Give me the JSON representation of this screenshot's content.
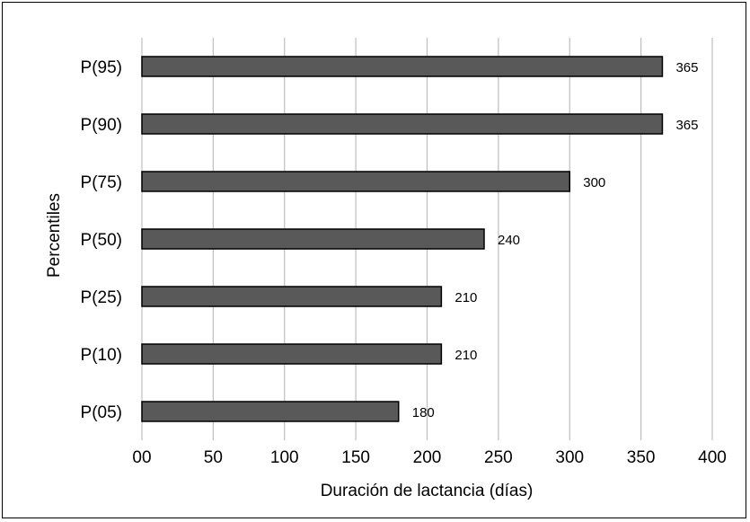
{
  "chart_data": {
    "type": "bar",
    "orientation": "horizontal",
    "title": "",
    "xlabel": "Duración de lactancia (días)",
    "ylabel": "Percentiles",
    "categories": [
      "P(95)",
      "P(90)",
      "P(75)",
      "P(50)",
      "P(25)",
      "P(10)",
      "P(05)"
    ],
    "values": [
      365,
      365,
      300,
      240,
      210,
      210,
      180
    ],
    "data_labels": [
      "365",
      "365",
      "300",
      "240",
      "210",
      "210",
      "180"
    ],
    "xlim": [
      0,
      400
    ],
    "x_ticks": [
      "00",
      "50",
      "100",
      "150",
      "200",
      "250",
      "300",
      "350",
      "400"
    ],
    "grid": "vertical",
    "legend": "none",
    "bar_color": "#595959",
    "bar_outline": "#000000",
    "grid_color": "#bfbfbf"
  }
}
